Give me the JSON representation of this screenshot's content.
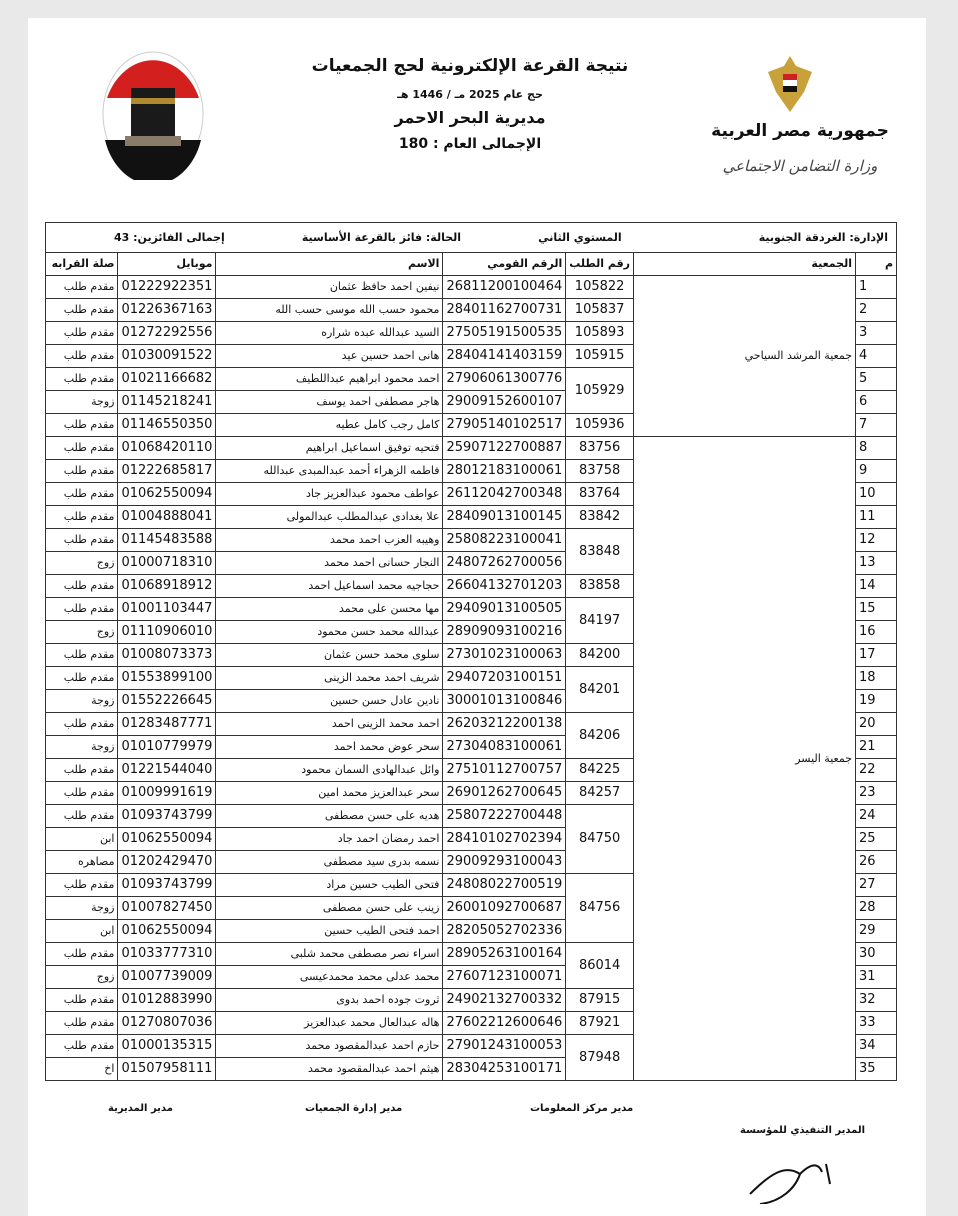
{
  "header": {
    "title": "نتيجة القرعة الإلكترونية لحج الجمعيات",
    "subtitle": "حج عام 2025 مـ / 1446 هـ",
    "directorate": "مديرية البحر الاحمر",
    "grand_total": "الإجمالى العام : 180",
    "republic": "جمهورية مصر العربية",
    "ministry": "وزارة التضامن الاجتماعي"
  },
  "info": {
    "administration": "الإدارة:  الغردقة الجنوبية",
    "level": "المستوي الثاني",
    "status": "الحالة:  فائز بالقرعة الأساسية",
    "winners_total": "إجمالى الفائزين:  43"
  },
  "columns": {
    "idx": "م",
    "assoc": "الجمعية",
    "req": "رقم الطلب",
    "nid": "الرقم القومي",
    "name": "الاسم",
    "mobile": "موبايل",
    "rel": "صلة القرابه"
  },
  "associations": [
    {
      "name": "جمعية المرشد السياحي",
      "rows": 7
    },
    {
      "name": "جمعية اليسر",
      "rows": 28
    }
  ],
  "rows": [
    {
      "idx": "1",
      "req": "105822",
      "nid": "26811200100464",
      "name": "نيفين احمد حافظ عثمان",
      "mobile": "01222922351",
      "rel": "مقدم طلب"
    },
    {
      "idx": "2",
      "req": "105837",
      "nid": "28401162700731",
      "name": "محمود حسب الله موسى حسب الله",
      "mobile": "01226367163",
      "rel": "مقدم طلب"
    },
    {
      "idx": "3",
      "req": "105893",
      "nid": "27505191500535",
      "name": "السيد عبدالله عبده شراره",
      "mobile": "01272292556",
      "rel": "مقدم طلب"
    },
    {
      "idx": "4",
      "req": "105915",
      "nid": "28404141403159",
      "name": "هانى احمد حسين عيد",
      "mobile": "01030091522",
      "rel": "مقدم طلب"
    },
    {
      "idx": "5",
      "req": "105929",
      "nid": "27906061300776",
      "name": "احمد محمود ابراهيم عبداللطيف",
      "mobile": "01021166682",
      "rel": "مقدم طلب"
    },
    {
      "idx": "6",
      "req": "105929",
      "nid": "29009152600107",
      "name": "هاجر مصطفى احمد يوسف",
      "mobile": "01145218241",
      "rel": "زوجة"
    },
    {
      "idx": "7",
      "req": "105936",
      "nid": "27905140102517",
      "name": "كامل رجب كامل عطيه",
      "mobile": "01146550350",
      "rel": "مقدم طلب"
    },
    {
      "idx": "8",
      "req": "83756",
      "nid": "25907122700887",
      "name": "فتحيه توفيق اسماعيل ابراهيم",
      "mobile": "01068420110",
      "rel": "مقدم طلب"
    },
    {
      "idx": "9",
      "req": "83758",
      "nid": "28012183100061",
      "name": "فاطمه الزهراء أحمد عبدالمبدى عبدالله",
      "mobile": "01222685817",
      "rel": "مقدم طلب"
    },
    {
      "idx": "10",
      "req": "83764",
      "nid": "26112042700348",
      "name": "عواطف محمود عبدالعزيز جاد",
      "mobile": "01062550094",
      "rel": "مقدم طلب"
    },
    {
      "idx": "11",
      "req": "83842",
      "nid": "28409013100145",
      "name": "علا بغدادى عبدالمطلب عبدالمولى",
      "mobile": "01004888041",
      "rel": "مقدم طلب"
    },
    {
      "idx": "12",
      "req": "83848",
      "nid": "25808223100041",
      "name": "وهيبه العزب احمد محمد",
      "mobile": "01145483588",
      "rel": "مقدم طلب"
    },
    {
      "idx": "13",
      "req": "83848",
      "nid": "24807262700056",
      "name": "النجار حسانى احمد محمد",
      "mobile": "01000718310",
      "rel": "زوج"
    },
    {
      "idx": "14",
      "req": "83858",
      "nid": "26604132701203",
      "name": "حجاجيه محمد اسماعيل احمد",
      "mobile": "01068918912",
      "rel": "مقدم طلب"
    },
    {
      "idx": "15",
      "req": "84197",
      "nid": "29409013100505",
      "name": "مها محسن على محمد",
      "mobile": "01001103447",
      "rel": "مقدم طلب"
    },
    {
      "idx": "16",
      "req": "84197",
      "nid": "28909093100216",
      "name": "عبدالله محمد حسن محمود",
      "mobile": "01110906010",
      "rel": "زوج"
    },
    {
      "idx": "17",
      "req": "84200",
      "nid": "27301023100063",
      "name": "سلوى محمد حسن عثمان",
      "mobile": "01008073373",
      "rel": "مقدم طلب"
    },
    {
      "idx": "18",
      "req": "84201",
      "nid": "29407203100151",
      "name": "شريف احمد محمد الزينى",
      "mobile": "01553899100",
      "rel": "مقدم طلب"
    },
    {
      "idx": "19",
      "req": "84201",
      "nid": "30001013100846",
      "name": "نادين عادل حسن حسين",
      "mobile": "01552226645",
      "rel": "زوجة"
    },
    {
      "idx": "20",
      "req": "84206",
      "nid": "26203212200138",
      "name": "احمد محمد الزينى احمد",
      "mobile": "01283487771",
      "rel": "مقدم طلب"
    },
    {
      "idx": "21",
      "req": "84206",
      "nid": "27304083100061",
      "name": "سحر عوض محمد احمد",
      "mobile": "01010779979",
      "rel": "زوجة"
    },
    {
      "idx": "22",
      "req": "84225",
      "nid": "27510112700757",
      "name": "وائل عبدالهادى السمان محمود",
      "mobile": "01221544040",
      "rel": "مقدم طلب"
    },
    {
      "idx": "23",
      "req": "84257",
      "nid": "26901262700645",
      "name": "سحر عبدالعزيز محمد امين",
      "mobile": "01009991619",
      "rel": "مقدم طلب"
    },
    {
      "idx": "24",
      "req": "84750",
      "nid": "25807222700448",
      "name": "هديه على حسن مصطفى",
      "mobile": "01093743799",
      "rel": "مقدم طلب"
    },
    {
      "idx": "25",
      "req": "84750",
      "nid": "28410102702394",
      "name": "احمد رمضان احمد جاد",
      "mobile": "01062550094",
      "rel": "ابن"
    },
    {
      "idx": "26",
      "req": "84750",
      "nid": "29009293100043",
      "name": "نسمه بدرى سيد مصطفى",
      "mobile": "01202429470",
      "rel": "مصاهره"
    },
    {
      "idx": "27",
      "req": "84756",
      "nid": "24808022700519",
      "name": "فتحى الطيب حسين مراد",
      "mobile": "01093743799",
      "rel": "مقدم طلب"
    },
    {
      "idx": "28",
      "req": "84756",
      "nid": "26001092700687",
      "name": "زينب على حسن مصطفى",
      "mobile": "01007827450",
      "rel": "زوجة"
    },
    {
      "idx": "29",
      "req": "84756",
      "nid": "28205052702336",
      "name": "احمد فتحى الطيب حسين",
      "mobile": "01062550094",
      "rel": "ابن"
    },
    {
      "idx": "30",
      "req": "86014",
      "nid": "28905263100164",
      "name": "اسراء نصر مصطفى محمد شلبى",
      "mobile": "01033777310",
      "rel": "مقدم طلب"
    },
    {
      "idx": "31",
      "req": "86014",
      "nid": "27607123100071",
      "name": "محمد عدلى محمد محمدعيسى",
      "mobile": "01007739009",
      "rel": "زوج"
    },
    {
      "idx": "32",
      "req": "87915",
      "nid": "24902132700332",
      "name": "ثروت جوده احمد بدوى",
      "mobile": "01012883990",
      "rel": "مقدم طلب"
    },
    {
      "idx": "33",
      "req": "87921",
      "nid": "27602212600646",
      "name": "هاله عبدالعال محمد عبدالعزيز",
      "mobile": "01270807036",
      "rel": "مقدم طلب"
    },
    {
      "idx": "34",
      "req": "87948",
      "nid": "27901243100053",
      "name": "حازم احمد عبدالمقصود محمد",
      "mobile": "01000135315",
      "rel": "مقدم طلب"
    },
    {
      "idx": "35",
      "req": "87948",
      "nid": "28304253100171",
      "name": "هيثم احمد عبدالمقصود محمد",
      "mobile": "01507958111",
      "rel": "اخ"
    }
  ],
  "signatures": {
    "directorate_manager": "مدير المديرية",
    "assoc_admin_manager": "مدير إدارة الجمعيات",
    "info_center_manager": "مدير مركز المعلومات",
    "executive_director": "المدير التنفيذي للمؤسسة"
  }
}
